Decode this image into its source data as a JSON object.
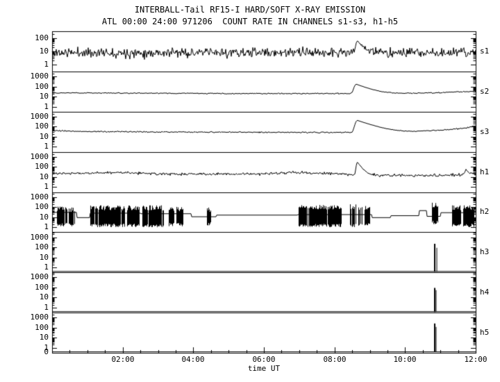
{
  "chart_data": {
    "type": "line",
    "title": "INTERBALL-Tail RF15-I HARD/SOFT X-RAY EMISSION",
    "subtitle": "ATL 00:00 24:00 971206  COUNT RATE IN CHANNELS s1-s3, h1-h5",
    "xlabel": "time UT",
    "x_range_hours": [
      0,
      12
    ],
    "x_major_ticks": [
      {
        "t": 2,
        "label": "02:00"
      },
      {
        "t": 4,
        "label": "04:00"
      },
      {
        "t": 6,
        "label": "06:00"
      },
      {
        "t": 8,
        "label": "08:00"
      },
      {
        "t": 10,
        "label": "10:00"
      },
      {
        "t": 12,
        "label": "12:00"
      }
    ],
    "x_minor_step_hours": 0.5,
    "y_scale": "log",
    "grid": false,
    "colors": {
      "trace": "#000000",
      "frame": "#000000",
      "background": "#ffffff",
      "text": "#000000"
    },
    "panels": [
      {
        "label": "s1",
        "ylog_range": [
          -0.5,
          2.5
        ],
        "yticks": [
          {
            "v": 100,
            "label": "100"
          },
          {
            "v": 10,
            "label": "10"
          },
          {
            "v": 1,
            "label": "1"
          }
        ],
        "series": {
          "kind": "noisy-line",
          "seed": 11,
          "baseline": [
            [
              0,
              8
            ],
            [
              12,
              8
            ]
          ],
          "noise_dex": 0.3,
          "flares": [
            {
              "t": 8.65,
              "peak": 55,
              "rise_h": 0.05,
              "decay_h": 0.12
            }
          ]
        }
      },
      {
        "label": "s2",
        "ylog_range": [
          -0.5,
          3.5
        ],
        "yticks": [
          {
            "v": 1000,
            "label": "1000"
          },
          {
            "v": 100,
            "label": "100"
          },
          {
            "v": 10,
            "label": "10"
          },
          {
            "v": 1,
            "label": "1"
          }
        ],
        "series": {
          "kind": "noisy-line",
          "seed": 22,
          "baseline": [
            [
              0,
              24
            ],
            [
              2,
              22
            ],
            [
              5,
              20
            ],
            [
              8.3,
              20
            ],
            [
              9.3,
              18
            ],
            [
              10,
              20
            ],
            [
              11,
              25
            ],
            [
              12,
              33
            ]
          ],
          "noise_dex": 0.045,
          "flares": [
            {
              "t": 8.62,
              "peak": 150,
              "rise_h": 0.07,
              "decay_h": 0.3
            }
          ]
        }
      },
      {
        "label": "s3",
        "ylog_range": [
          -0.5,
          3.5
        ],
        "yticks": [
          {
            "v": 1000,
            "label": "1000"
          },
          {
            "v": 100,
            "label": "100"
          },
          {
            "v": 10,
            "label": "10"
          },
          {
            "v": 1,
            "label": "1"
          }
        ],
        "series": {
          "kind": "noisy-line",
          "seed": 33,
          "baseline": [
            [
              0,
              40
            ],
            [
              1,
              33
            ],
            [
              3,
              30
            ],
            [
              6,
              28
            ],
            [
              8.4,
              27
            ],
            [
              9.5,
              26
            ],
            [
              10.3,
              32
            ],
            [
              11,
              45
            ],
            [
              11.6,
              65
            ],
            [
              12,
              120
            ]
          ],
          "noise_dex": 0.055,
          "flares": [
            {
              "t": 8.65,
              "peak": 400,
              "rise_h": 0.07,
              "decay_h": 0.35
            }
          ]
        }
      },
      {
        "label": "h1",
        "ylog_range": [
          -0.5,
          3.5
        ],
        "yticks": [
          {
            "v": 1000,
            "label": "1000"
          },
          {
            "v": 100,
            "label": "100"
          },
          {
            "v": 10,
            "label": "10"
          },
          {
            "v": 1,
            "label": "1"
          }
        ],
        "series": {
          "kind": "noisy-line",
          "seed": 44,
          "baseline": [
            [
              0,
              22
            ],
            [
              1.2,
              24
            ],
            [
              2,
              28
            ],
            [
              2.6,
              24
            ],
            [
              3.2,
              20
            ],
            [
              4.5,
              19
            ],
            [
              6,
              21
            ],
            [
              6.8,
              28
            ],
            [
              7.6,
              24
            ],
            [
              8.3,
              19
            ],
            [
              9,
              15
            ],
            [
              10.5,
              14
            ],
            [
              11.4,
              16
            ],
            [
              12,
              22
            ]
          ],
          "noise_dex": 0.11,
          "flares": [
            {
              "t": 8.65,
              "peak": 280,
              "rise_h": 0.035,
              "decay_h": 0.09
            },
            {
              "t": 11.72,
              "peak": 45,
              "rise_h": 0.02,
              "decay_h": 0.05
            }
          ]
        }
      },
      {
        "label": "h2",
        "ylog_range": [
          -0.5,
          3.5
        ],
        "yticks": [
          {
            "v": 1000,
            "label": "1000"
          },
          {
            "v": 100,
            "label": "100"
          },
          {
            "v": 10,
            "label": "10"
          },
          {
            "v": 1,
            "label": "1"
          }
        ],
        "series": {
          "kind": "step-bursts",
          "seed": 55,
          "steps": [
            [
              0,
              30
            ],
            [
              0.7,
              9
            ],
            [
              1.08,
              25
            ],
            [
              2.5,
              22
            ],
            [
              3.95,
              11
            ],
            [
              4.65,
              16
            ],
            [
              6.95,
              18
            ],
            [
              9.05,
              9
            ],
            [
              9.6,
              14
            ],
            [
              10.4,
              45
            ],
            [
              10.62,
              12
            ],
            [
              11.0,
              28
            ],
            [
              12,
              28
            ]
          ],
          "bursts": [
            {
              "start": 0.12,
              "end": 0.42,
              "low": 1.2,
              "high": 120
            },
            {
              "start": 0.46,
              "end": 0.64,
              "low": 1.2,
              "high": 100
            },
            {
              "start": 1.08,
              "end": 2.06,
              "low": 1.0,
              "high": 150
            },
            {
              "start": 2.12,
              "end": 2.46,
              "low": 1.0,
              "high": 150
            },
            {
              "start": 2.54,
              "end": 3.16,
              "low": 1.0,
              "high": 150
            },
            {
              "start": 3.3,
              "end": 3.46,
              "low": 1.2,
              "high": 120
            },
            {
              "start": 3.52,
              "end": 3.7,
              "low": 1.2,
              "high": 120
            },
            {
              "start": 4.35,
              "end": 4.5,
              "low": 1.5,
              "high": 90
            },
            {
              "start": 6.98,
              "end": 8.2,
              "low": 1.0,
              "high": 170
            },
            {
              "start": 8.42,
              "end": 8.6,
              "low": 1.0,
              "high": 200
            },
            {
              "start": 8.66,
              "end": 8.78,
              "low": 1.0,
              "high": 150
            },
            {
              "start": 8.84,
              "end": 9.0,
              "low": 1.2,
              "high": 140
            },
            {
              "start": 10.75,
              "end": 10.92,
              "low": 2.0,
              "high": 280
            },
            {
              "start": 11.33,
              "end": 11.57,
              "low": 1.2,
              "high": 150
            },
            {
              "start": 11.63,
              "end": 11.95,
              "low": 1.0,
              "high": 160
            }
          ]
        }
      },
      {
        "label": "h3",
        "ylog_range": [
          -0.5,
          3.5
        ],
        "yticks": [
          {
            "v": 1000,
            "label": "1000"
          },
          {
            "v": 100,
            "label": "100"
          },
          {
            "v": 10,
            "label": "10"
          },
          {
            "v": 1,
            "label": "1"
          }
        ],
        "series": {
          "kind": "quiet-spikes",
          "seed": 66,
          "baseline_at_floor": true,
          "spikes": [
            {
              "t": 10.84,
              "peak": 220
            },
            {
              "t": 10.9,
              "peak": 90
            }
          ]
        }
      },
      {
        "label": "h4",
        "ylog_range": [
          -0.5,
          3.5
        ],
        "yticks": [
          {
            "v": 1000,
            "label": "1000"
          },
          {
            "v": 100,
            "label": "100"
          },
          {
            "v": 10,
            "label": "10"
          },
          {
            "v": 1,
            "label": "1"
          }
        ],
        "series": {
          "kind": "quiet-spikes",
          "seed": 77,
          "baseline_at_floor": true,
          "spikes": [
            {
              "t": 10.84,
              "peak": 90
            },
            {
              "t": 10.88,
              "peak": 55
            }
          ]
        }
      },
      {
        "label": "h5",
        "ylog_range": [
          -0.5,
          3.5
        ],
        "yticks": [
          {
            "v": 1000,
            "label": "1000"
          },
          {
            "v": 100,
            "label": "100"
          },
          {
            "v": 10,
            "label": "10"
          },
          {
            "v": 1,
            "label": "1"
          }
        ],
        "floor_label": "0",
        "series": {
          "kind": "quiet-spikes",
          "seed": 88,
          "baseline_at_floor": true,
          "spikes": [
            {
              "t": 10.84,
              "peak": 260
            },
            {
              "t": 10.88,
              "peak": 120
            }
          ]
        }
      }
    ]
  }
}
